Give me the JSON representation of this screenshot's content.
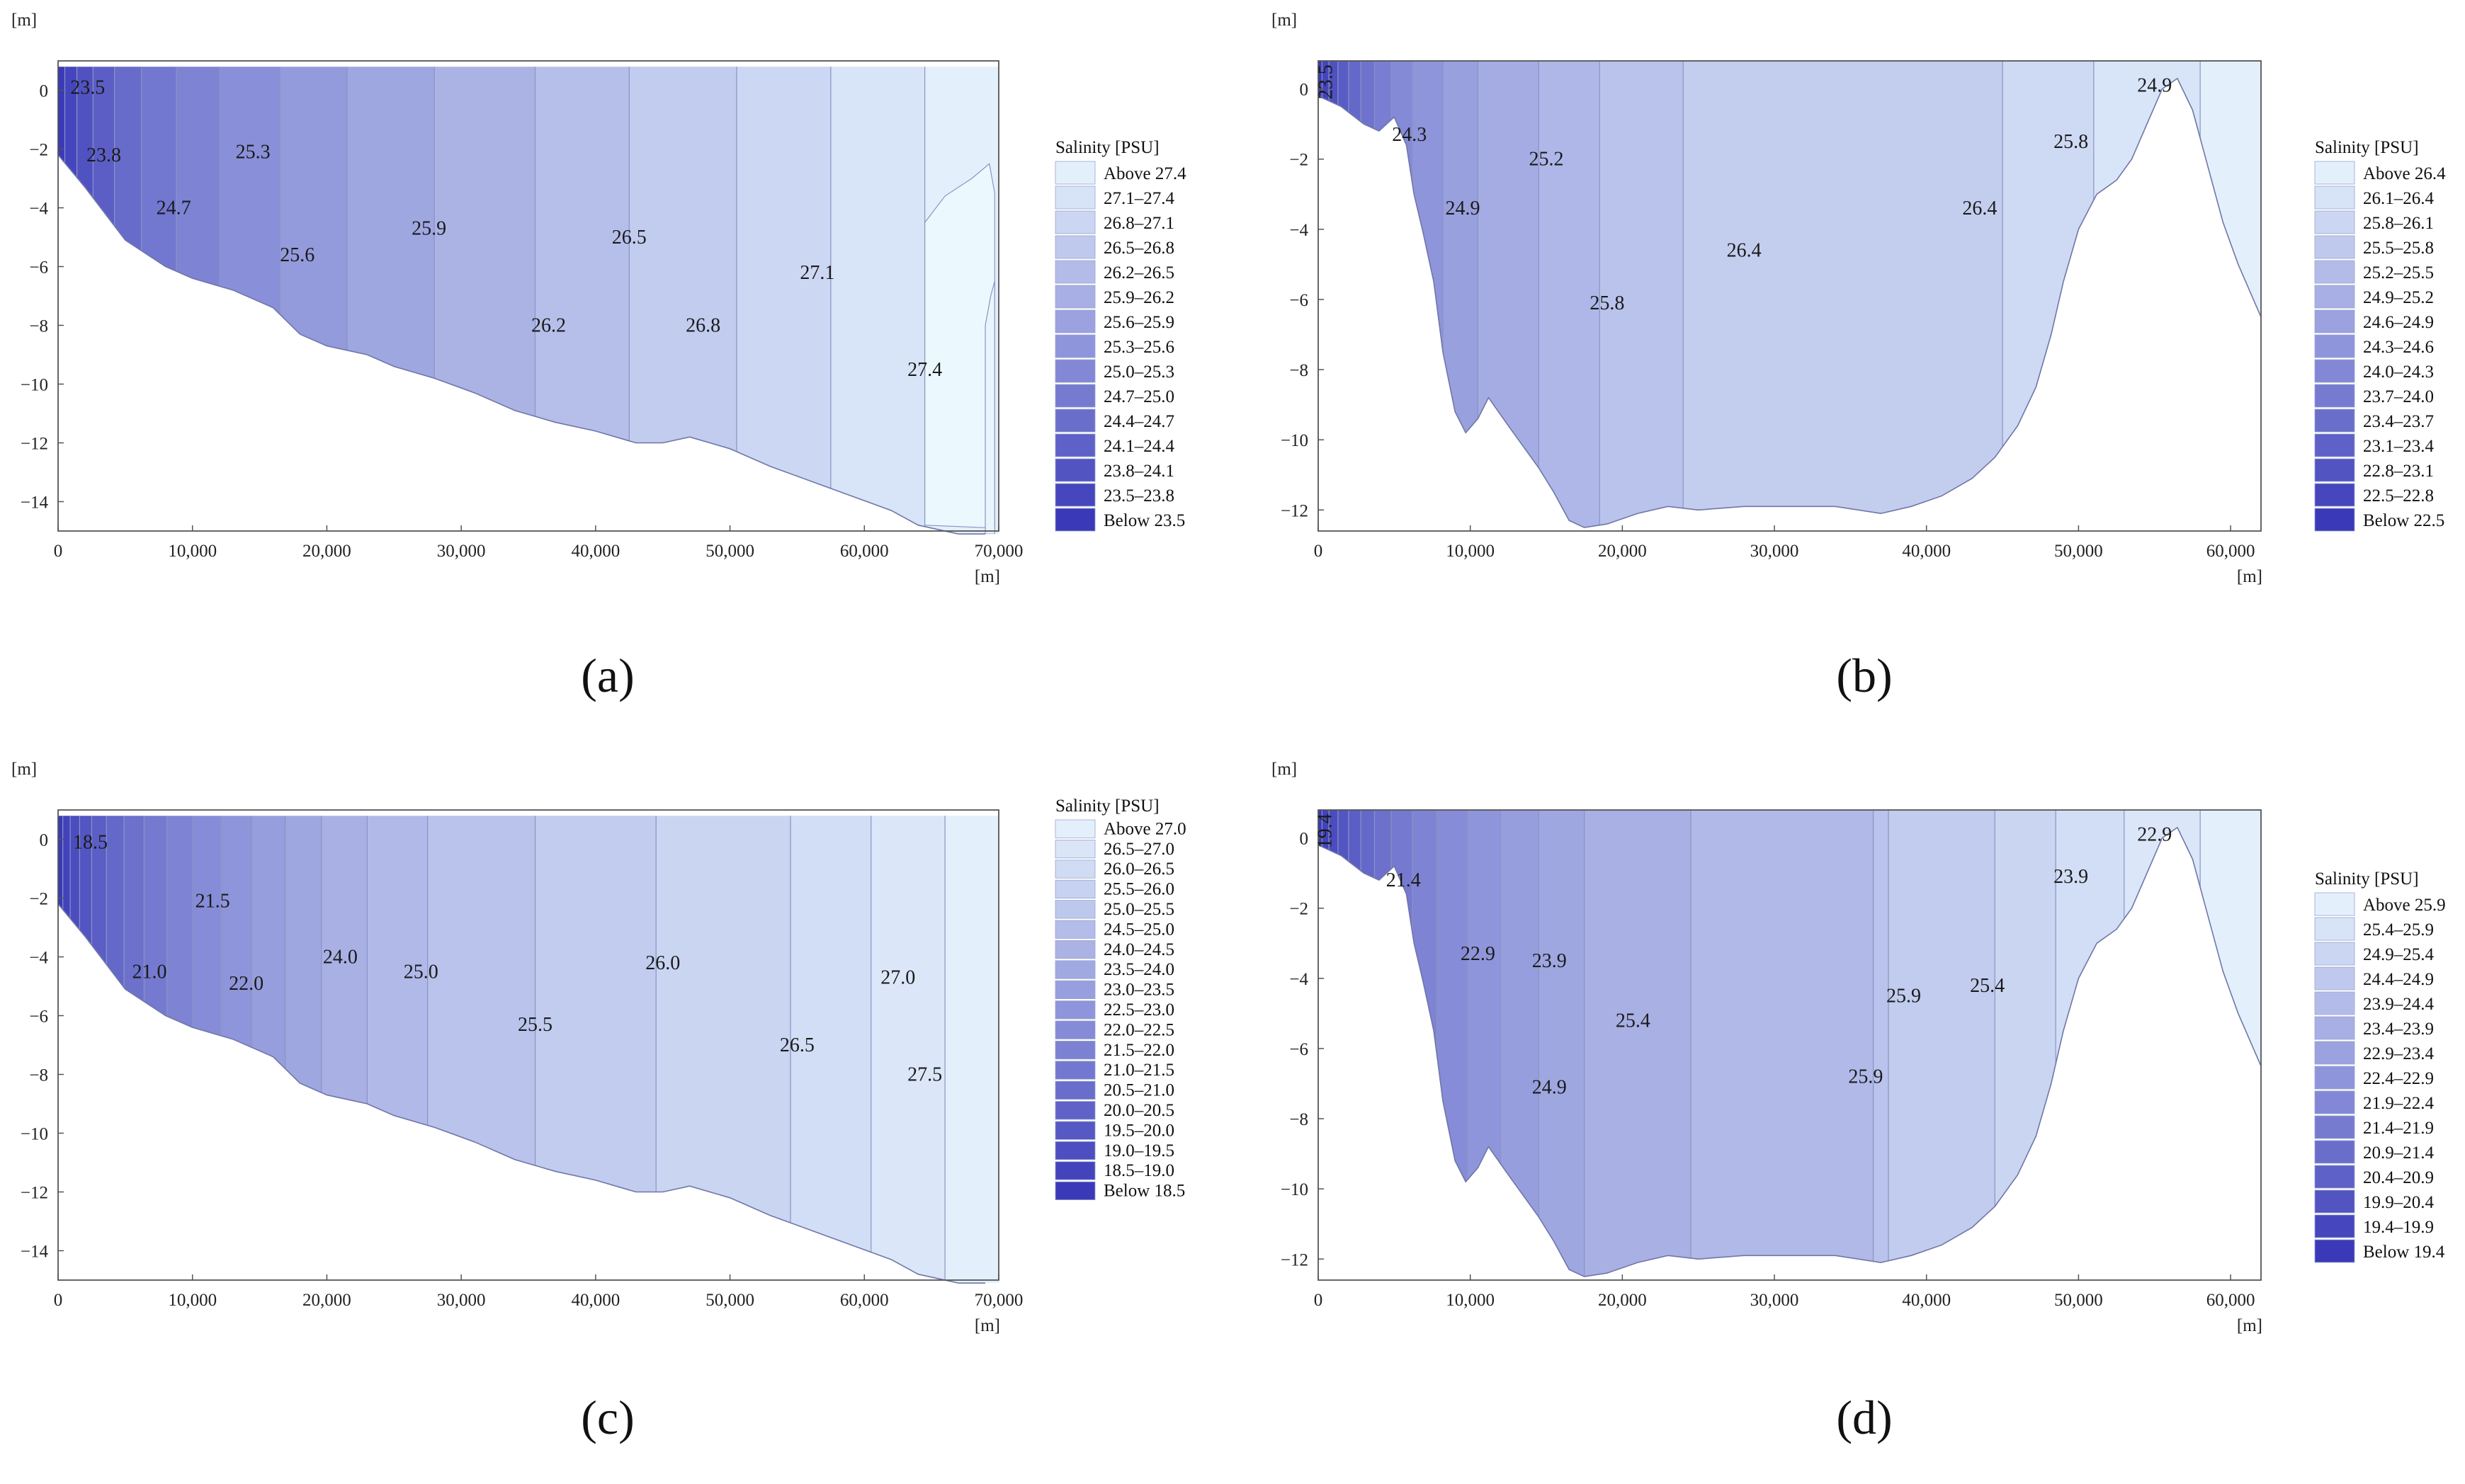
{
  "chart_data": [
    {
      "id": "a",
      "type": "heatmap",
      "caption": "(a)",
      "x_unit": "[m]",
      "y_unit": "[m]",
      "xlim": [
        0,
        70000
      ],
      "ylim": [
        -15,
        1
      ],
      "x_ticks": [
        0,
        10000,
        20000,
        30000,
        40000,
        50000,
        60000,
        70000
      ],
      "x_tick_labels": [
        "0",
        "10,000",
        "20,000",
        "30,000",
        "40,000",
        "50,000",
        "60,000",
        "70,000"
      ],
      "y_ticks": [
        0,
        -2,
        -4,
        -6,
        -8,
        -10,
        -12,
        -14
      ],
      "y_tick_labels": [
        "0",
        "−2",
        "−4",
        "−6",
        "−8",
        "−10",
        "−12",
        "−14"
      ],
      "bottom_profile": [
        [
          0,
          -2.2
        ],
        [
          2000,
          -3.3
        ],
        [
          5000,
          -5.1
        ],
        [
          8000,
          -6.0
        ],
        [
          10000,
          -6.4
        ],
        [
          13000,
          -6.8
        ],
        [
          16000,
          -7.4
        ],
        [
          18000,
          -8.3
        ],
        [
          20000,
          -8.7
        ],
        [
          23000,
          -9.0
        ],
        [
          25000,
          -9.4
        ],
        [
          28000,
          -9.8
        ],
        [
          31000,
          -10.3
        ],
        [
          34000,
          -10.9
        ],
        [
          37000,
          -11.3
        ],
        [
          40000,
          -11.6
        ],
        [
          43000,
          -12.0
        ],
        [
          45000,
          -12.0
        ],
        [
          47000,
          -11.8
        ],
        [
          50000,
          -12.2
        ],
        [
          53000,
          -12.8
        ],
        [
          56000,
          -13.3
        ],
        [
          59000,
          -13.8
        ],
        [
          62000,
          -14.3
        ],
        [
          64000,
          -14.8
        ],
        [
          67000,
          -15.1
        ],
        [
          69000,
          -15.1
        ]
      ],
      "bands_x": [
        0,
        500,
        1400,
        2600,
        4200,
        6200,
        8800,
        12000,
        16500,
        21500,
        28000,
        35500,
        42500,
        50500,
        57500,
        64500,
        70000
      ],
      "inner_contour": [
        [
          64500,
          -14.8
        ],
        [
          64500,
          -4.5
        ],
        [
          66000,
          -3.6
        ],
        [
          68000,
          -3.0
        ],
        [
          69300,
          -2.5
        ],
        [
          69700,
          -3.5
        ],
        [
          69700,
          -14.9
        ]
      ],
      "inner_contour2": [
        [
          69000,
          -15.1
        ],
        [
          69000,
          -8.0
        ],
        [
          69400,
          -7.0
        ],
        [
          69700,
          -6.5
        ],
        [
          69700,
          -15.1
        ]
      ],
      "contour_labels": [
        {
          "text": "23.5",
          "x": 2200,
          "y": 0.1
        },
        {
          "text": "23.8",
          "x": 3400,
          "y": -2.2
        },
        {
          "text": "24.7",
          "x": 8600,
          "y": -4.0
        },
        {
          "text": "25.3",
          "x": 14500,
          "y": -2.1
        },
        {
          "text": "25.6",
          "x": 17800,
          "y": -5.6
        },
        {
          "text": "25.9",
          "x": 27600,
          "y": -4.7
        },
        {
          "text": "26.2",
          "x": 36500,
          "y": -8.0
        },
        {
          "text": "26.5",
          "x": 42500,
          "y": -5.0
        },
        {
          "text": "26.8",
          "x": 48000,
          "y": -8.0
        },
        {
          "text": "27.1",
          "x": 56500,
          "y": -6.2
        },
        {
          "text": "27.4",
          "x": 64500,
          "y": -9.5
        }
      ],
      "legend": {
        "title": "Salinity [PSU]",
        "entries": [
          "Above 27.4",
          "27.1–27.4",
          "26.8–27.1",
          "26.5–26.8",
          "26.2–26.5",
          "25.9–26.2",
          "25.6–25.9",
          "25.3–25.6",
          "25.0–25.3",
          "24.7–25.0",
          "24.4–24.7",
          "24.1–24.4",
          "23.8–24.1",
          "23.5–23.8",
          "Below 23.5"
        ]
      }
    },
    {
      "id": "b",
      "type": "heatmap",
      "caption": "(b)",
      "x_unit": "[m]",
      "y_unit": "[m]",
      "xlim": [
        0,
        62000
      ],
      "ylim": [
        -12.6,
        0.8
      ],
      "x_ticks": [
        0,
        10000,
        20000,
        30000,
        40000,
        50000,
        60000
      ],
      "x_tick_labels": [
        "0",
        "10,000",
        "20,000",
        "30,000",
        "40,000",
        "50,000",
        "60,000"
      ],
      "y_ticks": [
        0,
        -2,
        -4,
        -6,
        -8,
        -10,
        -12
      ],
      "y_tick_labels": [
        "0",
        "−2",
        "−4",
        "−6",
        "−8",
        "−10",
        "−12"
      ],
      "bottom_profile": [
        [
          0,
          -0.2
        ],
        [
          1500,
          -0.5
        ],
        [
          3000,
          -1.0
        ],
        [
          4000,
          -1.2
        ],
        [
          5000,
          -0.8
        ],
        [
          5800,
          -1.6
        ],
        [
          6300,
          -3.0
        ],
        [
          6900,
          -4.1
        ],
        [
          7600,
          -5.5
        ],
        [
          8200,
          -7.5
        ],
        [
          9000,
          -9.2
        ],
        [
          9700,
          -9.8
        ],
        [
          10500,
          -9.4
        ],
        [
          11200,
          -8.8
        ],
        [
          12500,
          -9.6
        ],
        [
          13500,
          -10.2
        ],
        [
          14500,
          -10.8
        ],
        [
          15500,
          -11.5
        ],
        [
          16500,
          -12.3
        ],
        [
          17500,
          -12.5
        ],
        [
          19000,
          -12.4
        ],
        [
          21000,
          -12.1
        ],
        [
          23000,
          -11.9
        ],
        [
          25000,
          -12.0
        ],
        [
          28000,
          -11.9
        ],
        [
          31000,
          -11.9
        ],
        [
          34000,
          -11.9
        ],
        [
          37000,
          -12.1
        ],
        [
          39000,
          -11.9
        ],
        [
          41000,
          -11.6
        ],
        [
          43000,
          -11.1
        ],
        [
          44500,
          -10.5
        ],
        [
          46000,
          -9.6
        ],
        [
          47200,
          -8.5
        ],
        [
          48200,
          -7.0
        ],
        [
          49000,
          -5.5
        ],
        [
          50000,
          -4.0
        ],
        [
          51200,
          -3.0
        ],
        [
          52500,
          -2.6
        ],
        [
          53500,
          -2.0
        ],
        [
          54500,
          -1.0
        ],
        [
          55500,
          0.0
        ],
        [
          56500,
          0.3
        ],
        [
          57500,
          -0.6
        ],
        [
          58500,
          -2.2
        ],
        [
          59500,
          -3.8
        ],
        [
          60500,
          -5.0
        ],
        [
          61500,
          -6.0
        ],
        [
          62000,
          -6.5
        ]
      ],
      "bands_x": [
        0,
        250,
        700,
        1300,
        2000,
        2800,
        3700,
        4800,
        6200,
        8200,
        10500,
        14500,
        18500,
        24000,
        45000,
        51000,
        58000,
        62000
      ],
      "contour_labels": [
        {
          "text": "23.5",
          "x": 500,
          "y": 0.2,
          "rotate": -90
        },
        {
          "text": "24.3",
          "x": 6000,
          "y": -1.3
        },
        {
          "text": "24.9",
          "x": 9500,
          "y": -3.4
        },
        {
          "text": "25.2",
          "x": 15000,
          "y": -2.0
        },
        {
          "text": "25.8",
          "x": 19000,
          "y": -6.1
        },
        {
          "text": "26.4",
          "x": 28000,
          "y": -4.6
        },
        {
          "text": "26.4",
          "x": 43500,
          "y": -3.4
        },
        {
          "text": "25.8",
          "x": 49500,
          "y": -1.5
        },
        {
          "text": "24.9",
          "x": 55000,
          "y": 0.1
        }
      ],
      "legend": {
        "title": "Salinity [PSU]",
        "entries": [
          "Above 26.4",
          "26.1–26.4",
          "25.8–26.1",
          "25.5–25.8",
          "25.2–25.5",
          "24.9–25.2",
          "24.6–24.9",
          "24.3–24.6",
          "24.0–24.3",
          "23.7–24.0",
          "23.4–23.7",
          "23.1–23.4",
          "22.8–23.1",
          "22.5–22.8",
          "Below 22.5"
        ]
      }
    },
    {
      "id": "c",
      "type": "heatmap",
      "caption": "(c)",
      "x_unit": "[m]",
      "y_unit": "[m]",
      "xlim": [
        0,
        70000
      ],
      "ylim": [
        -15,
        1
      ],
      "x_ticks": [
        0,
        10000,
        20000,
        30000,
        40000,
        50000,
        60000,
        70000
      ],
      "x_tick_labels": [
        "0",
        "10,000",
        "20,000",
        "30,000",
        "40,000",
        "50,000",
        "60,000",
        "70,000"
      ],
      "y_ticks": [
        0,
        -2,
        -4,
        -6,
        -8,
        -10,
        -12,
        -14
      ],
      "y_tick_labels": [
        "0",
        "−2",
        "−4",
        "−6",
        "−8",
        "−10",
        "−12",
        "−14"
      ],
      "bottom_profile": [
        [
          0,
          -2.2
        ],
        [
          2000,
          -3.3
        ],
        [
          5000,
          -5.1
        ],
        [
          8000,
          -6.0
        ],
        [
          10000,
          -6.4
        ],
        [
          13000,
          -6.8
        ],
        [
          16000,
          -7.4
        ],
        [
          18000,
          -8.3
        ],
        [
          20000,
          -8.7
        ],
        [
          23000,
          -9.0
        ],
        [
          25000,
          -9.4
        ],
        [
          28000,
          -9.8
        ],
        [
          31000,
          -10.3
        ],
        [
          34000,
          -10.9
        ],
        [
          37000,
          -11.3
        ],
        [
          40000,
          -11.6
        ],
        [
          43000,
          -12.0
        ],
        [
          45000,
          -12.0
        ],
        [
          47000,
          -11.8
        ],
        [
          50000,
          -12.2
        ],
        [
          53000,
          -12.8
        ],
        [
          56000,
          -13.3
        ],
        [
          59000,
          -13.8
        ],
        [
          62000,
          -14.3
        ],
        [
          64000,
          -14.8
        ],
        [
          67000,
          -15.1
        ],
        [
          69000,
          -15.1
        ]
      ],
      "bands_x": [
        0,
        350,
        900,
        1600,
        2500,
        3600,
        4900,
        6400,
        8100,
        10000,
        12100,
        14400,
        16900,
        19600,
        23000,
        27500,
        35500,
        44500,
        54500,
        60500,
        66000,
        70000
      ],
      "contour_labels": [
        {
          "text": "18.5",
          "x": 2400,
          "y": -0.1
        },
        {
          "text": "21.5",
          "x": 11500,
          "y": -2.1
        },
        {
          "text": "21.0",
          "x": 6800,
          "y": -4.5
        },
        {
          "text": "22.0",
          "x": 14000,
          "y": -4.9
        },
        {
          "text": "24.0",
          "x": 21000,
          "y": -4.0
        },
        {
          "text": "25.0",
          "x": 27000,
          "y": -4.5
        },
        {
          "text": "25.5",
          "x": 35500,
          "y": -6.3
        },
        {
          "text": "26.0",
          "x": 45000,
          "y": -4.2
        },
        {
          "text": "26.5",
          "x": 55000,
          "y": -7.0
        },
        {
          "text": "27.0",
          "x": 62500,
          "y": -4.7
        },
        {
          "text": "27.5",
          "x": 64500,
          "y": -8.0
        }
      ],
      "legend": {
        "title": "Salinity [PSU]",
        "entries": [
          "Above 27.0",
          "26.5–27.0",
          "26.0–26.5",
          "25.5–26.0",
          "25.0–25.5",
          "24.5–25.0",
          "24.0–24.5",
          "23.5–24.0",
          "23.0–23.5",
          "22.5–23.0",
          "22.0–22.5",
          "21.5–22.0",
          "21.0–21.5",
          "20.5–21.0",
          "20.0–20.5",
          "19.5–20.0",
          "19.0–19.5",
          "18.5–19.0",
          "Below 18.5"
        ]
      }
    },
    {
      "id": "d",
      "type": "heatmap",
      "caption": "(d)",
      "x_unit": "[m]",
      "y_unit": "[m]",
      "xlim": [
        0,
        62000
      ],
      "ylim": [
        -12.6,
        0.8
      ],
      "x_ticks": [
        0,
        10000,
        20000,
        30000,
        40000,
        50000,
        60000
      ],
      "x_tick_labels": [
        "0",
        "10,000",
        "20,000",
        "30,000",
        "40,000",
        "50,000",
        "60,000"
      ],
      "y_ticks": [
        0,
        -2,
        -4,
        -6,
        -8,
        -10,
        -12
      ],
      "y_tick_labels": [
        "0",
        "−2",
        "−4",
        "−6",
        "−8",
        "−10",
        "−12"
      ],
      "bottom_profile": [
        [
          0,
          -0.2
        ],
        [
          1500,
          -0.5
        ],
        [
          3000,
          -1.0
        ],
        [
          4000,
          -1.2
        ],
        [
          5000,
          -0.8
        ],
        [
          5800,
          -1.6
        ],
        [
          6300,
          -3.0
        ],
        [
          6900,
          -4.1
        ],
        [
          7600,
          -5.5
        ],
        [
          8200,
          -7.5
        ],
        [
          9000,
          -9.2
        ],
        [
          9700,
          -9.8
        ],
        [
          10500,
          -9.4
        ],
        [
          11200,
          -8.8
        ],
        [
          12500,
          -9.6
        ],
        [
          13500,
          -10.2
        ],
        [
          14500,
          -10.8
        ],
        [
          15500,
          -11.5
        ],
        [
          16500,
          -12.3
        ],
        [
          17500,
          -12.5
        ],
        [
          19000,
          -12.4
        ],
        [
          21000,
          -12.1
        ],
        [
          23000,
          -11.9
        ],
        [
          25000,
          -12.0
        ],
        [
          28000,
          -11.9
        ],
        [
          31000,
          -11.9
        ],
        [
          34000,
          -11.9
        ],
        [
          37000,
          -12.1
        ],
        [
          39000,
          -11.9
        ],
        [
          41000,
          -11.6
        ],
        [
          43000,
          -11.1
        ],
        [
          44500,
          -10.5
        ],
        [
          46000,
          -9.6
        ],
        [
          47200,
          -8.5
        ],
        [
          48200,
          -7.0
        ],
        [
          49000,
          -5.5
        ],
        [
          50000,
          -4.0
        ],
        [
          51200,
          -3.0
        ],
        [
          52500,
          -2.6
        ],
        [
          53500,
          -2.0
        ],
        [
          54500,
          -1.0
        ],
        [
          55500,
          0.0
        ],
        [
          56500,
          0.3
        ],
        [
          57500,
          -0.6
        ],
        [
          58500,
          -2.2
        ],
        [
          59500,
          -3.8
        ],
        [
          60500,
          -5.0
        ],
        [
          61500,
          -6.0
        ],
        [
          62000,
          -6.5
        ]
      ],
      "bands_x": [
        0,
        250,
        700,
        1300,
        2000,
        2800,
        3700,
        4800,
        6200,
        7800,
        9800,
        12000,
        14500,
        17500,
        24500,
        36500,
        37500,
        44500,
        48500,
        53000,
        58000,
        62000
      ],
      "contour_labels": [
        {
          "text": "19.4",
          "x": 450,
          "y": 0.2,
          "rotate": -90
        },
        {
          "text": "21.4",
          "x": 5600,
          "y": -1.2
        },
        {
          "text": "22.9",
          "x": 10500,
          "y": -3.3
        },
        {
          "text": "23.9",
          "x": 15200,
          "y": -3.5
        },
        {
          "text": "24.9",
          "x": 15200,
          "y": -7.1
        },
        {
          "text": "25.4",
          "x": 20700,
          "y": -5.2
        },
        {
          "text": "25.9",
          "x": 36000,
          "y": -6.8
        },
        {
          "text": "25.9",
          "x": 38500,
          "y": -4.5
        },
        {
          "text": "25.4",
          "x": 44000,
          "y": -4.2
        },
        {
          "text": "23.9",
          "x": 49500,
          "y": -1.1
        },
        {
          "text": "22.9",
          "x": 55000,
          "y": 0.1
        }
      ],
      "legend": {
        "title": "Salinity [PSU]",
        "entries": [
          "Above 25.9",
          "25.4–25.9",
          "24.9–25.4",
          "24.4–24.9",
          "23.9–24.4",
          "23.4–23.9",
          "22.9–23.4",
          "22.4–22.9",
          "21.9–22.4",
          "21.4–21.9",
          "20.9–21.4",
          "20.4–20.9",
          "19.9–20.4",
          "19.4–19.9",
          "Below 19.4"
        ]
      }
    }
  ],
  "colors": {
    "light": "#e3f0fc",
    "dark": "#3a3ab8",
    "frame": "#555555",
    "contour_line": "#8a93c4"
  }
}
